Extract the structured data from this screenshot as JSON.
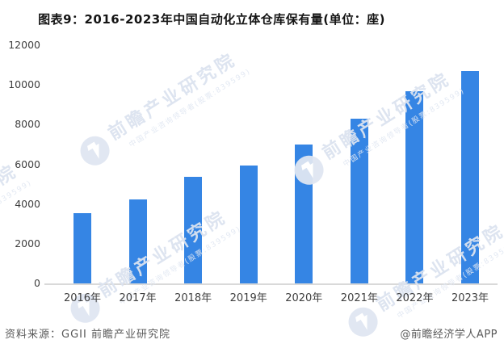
{
  "title": "图表9：2016-2023年中国自动化立体仓库保有量(单位：座)",
  "chart_data": {
    "type": "bar",
    "title": "图表9：2016-2023年中国自动化立体仓库保有量(单位：座)",
    "categories": [
      "2016年",
      "2017年",
      "2018年",
      "2019年",
      "2020年",
      "2021年",
      "2022年",
      "2023年"
    ],
    "values": [
      3550,
      4250,
      5350,
      5950,
      7000,
      8300,
      9700,
      10700
    ],
    "xlabel": "",
    "ylabel": "",
    "unit": "座",
    "ylim": [
      0,
      12000
    ],
    "y_ticks": [
      0,
      2000,
      4000,
      6000,
      8000,
      10000,
      12000
    ],
    "grid": false,
    "legend": false,
    "bar_color": "#3585e4"
  },
  "colors": {
    "bar": "#3585e4",
    "axis_text": "#3f3f3f",
    "baseline": "#d9d9d9",
    "title_text": "#141414",
    "footer_text": "#595959",
    "watermark": "#dbe3ef"
  },
  "footer": {
    "source": "资料来源：GGII 前瞻产业研究院",
    "credit": "@前瞻经济学人APP"
  },
  "watermark": {
    "brand": "前瞻产业研究院",
    "subtitle": "中国产业咨询领导者(股票:839599)"
  }
}
